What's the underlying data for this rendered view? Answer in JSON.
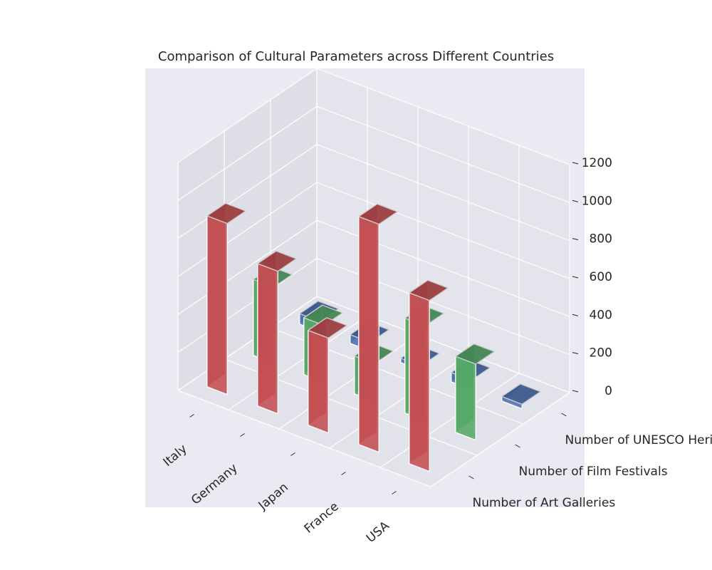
{
  "chart_data": {
    "type": "bar",
    "title": "Comparison of Cultural Parameters across Different Countries",
    "categories": [
      "Italy",
      "Germany",
      "Japan",
      "France",
      "USA"
    ],
    "series": [
      {
        "name": "Number of Art Galleries",
        "values": [
          900,
          750,
          500,
          1200,
          900
        ],
        "color": "#c44e52"
      },
      {
        "name": "Number of Film Festivals",
        "values": [
          400,
          300,
          200,
          500,
          400
        ],
        "color": "#55a868"
      },
      {
        "name": "Number of UNESCO Heritage Sites",
        "values": [
          55,
          46,
          23,
          49,
          24
        ],
        "color": "#4c72b0"
      }
    ],
    "zlim": [
      0,
      1200
    ],
    "zticks": [
      0,
      200,
      400,
      600,
      800,
      1000,
      1200
    ],
    "grid": true,
    "background": "#eaeaf2"
  }
}
